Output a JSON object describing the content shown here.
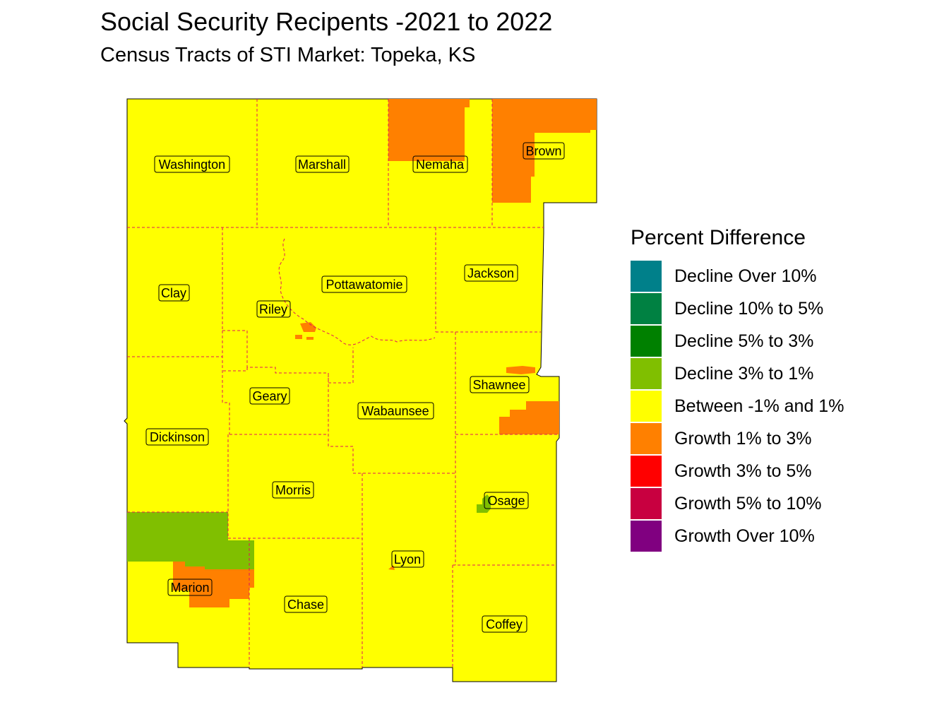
{
  "title": "Social Security Recipents -2021 to 2022",
  "subtitle": "Census Tracts of STI Market: Topeka, KS",
  "legend": {
    "title": "Percent Difference",
    "items": [
      {
        "label": "Decline Over 10%",
        "color": "#00808a"
      },
      {
        "label": "Decline 10% to 5%",
        "color": "#008142"
      },
      {
        "label": "Decline 5% to 3%",
        "color": "#008000"
      },
      {
        "label": "Decline 3% to 1%",
        "color": "#80bf00"
      },
      {
        "label": "Between -1% and 1%",
        "color": "#ffff00"
      },
      {
        "label": "Growth 1% to 3%",
        "color": "#ff8000"
      },
      {
        "label": "Growth 3% to 5%",
        "color": "#ff0000"
      },
      {
        "label": "Growth 5% to 10%",
        "color": "#c80040"
      },
      {
        "label": "Growth Over 10%",
        "color": "#800080"
      }
    ]
  },
  "counties": {
    "washington": "Washington",
    "marshall": "Marshall",
    "nemaha": "Nemaha",
    "brown": "Brown",
    "clay": "Clay",
    "riley": "Riley",
    "pottawatomie": "Pottawatomie",
    "jackson": "Jackson",
    "geary": "Geary",
    "shawnee": "Shawnee",
    "dickinson": "Dickinson",
    "wabaunsee": "Wabaunsee",
    "morris": "Morris",
    "osage": "Osage",
    "marion": "Marion",
    "chase": "Chase",
    "lyon": "Lyon",
    "coffey": "Coffey"
  }
}
